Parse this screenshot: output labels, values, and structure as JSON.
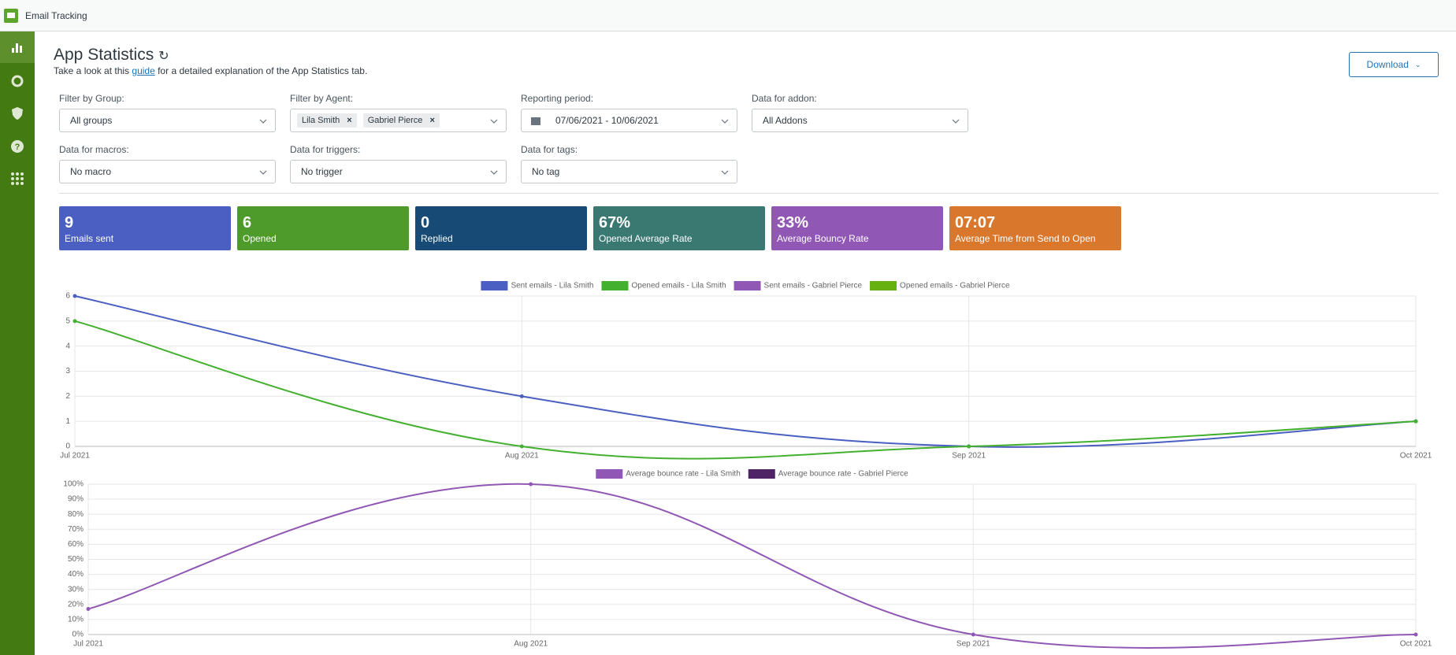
{
  "header": {
    "app_name": "Email Tracking"
  },
  "page": {
    "title": "App Statistics",
    "intro_before": "Take a look at this ",
    "intro_link": "guide",
    "intro_after": " for a detailed explanation of the App Statistics tab.",
    "download": "Download"
  },
  "filters": [
    {
      "label": "Filter by Group:",
      "value": "All groups"
    },
    {
      "label": "Filter by Agent:",
      "chips": [
        "Lila Smith",
        "Gabriel Pierce"
      ]
    },
    {
      "label": "Reporting period:",
      "value": "07/06/2021 - 10/06/2021"
    },
    {
      "label": "Data for addon:",
      "value": "All Addons"
    },
    {
      "label": "Data for macros:",
      "value": "No macro"
    },
    {
      "label": "Data for triggers:",
      "value": "No trigger"
    },
    {
      "label": "Data for tags:",
      "value": "No tag"
    }
  ],
  "stats": [
    {
      "value": 9,
      "label": "Emails sent",
      "color": "#4a5fc1"
    },
    {
      "value": 6,
      "label": "Opened",
      "color": "#4e9a2a"
    },
    {
      "value": 0,
      "label": "Replied",
      "color": "#174a75"
    },
    {
      "value": "67%",
      "label": "Opened Average Rate",
      "color": "#3a7872"
    },
    {
      "value": "33%",
      "label": "Average Bouncy Rate",
      "color": "#9058b4"
    },
    {
      "value": "07:07",
      "label": "Average Time from Send to Open",
      "color": "#d9782d"
    }
  ],
  "chart_data": [
    {
      "type": "line",
      "categories": [
        "Jul 2021",
        "Aug 2021",
        "Sep 2021",
        "Oct 2021"
      ],
      "series": [
        {
          "name": "Sent emails - Lila Smith",
          "color": "#4a5fc1",
          "values": [
            6,
            2,
            0,
            1
          ]
        },
        {
          "name": "Opened emails - Lila Smith",
          "color": "#44b030",
          "values": [
            5,
            0,
            0,
            1
          ]
        },
        {
          "name": "Sent emails - Gabriel Pierce",
          "color": "#9058b4",
          "values": [
            null,
            null,
            null,
            null
          ]
        },
        {
          "name": "Opened emails - Gabriel Pierce",
          "color": "#66b010",
          "values": [
            null,
            null,
            null,
            null
          ]
        }
      ],
      "ylim": [
        0,
        6
      ],
      "yticks": [
        0,
        1,
        2,
        3,
        4,
        5,
        6
      ],
      "grid": true,
      "legend": "top"
    },
    {
      "type": "line",
      "categories": [
        "Jul 2021",
        "Aug 2021",
        "Sep 2021",
        "Oct 2021"
      ],
      "series": [
        {
          "name": "Average bounce rate - Lila Smith",
          "color": "#9058b4",
          "values": [
            17,
            100,
            0,
            0
          ]
        },
        {
          "name": "Average bounce rate - Gabriel Pierce",
          "color": "#4f2467",
          "values": [
            null,
            null,
            null,
            null
          ]
        }
      ],
      "ylim": [
        0,
        100
      ],
      "yticks": [
        {
          "value": 0,
          "label": "0%"
        },
        {
          "value": 10,
          "label": "10%"
        },
        {
          "value": 20,
          "label": "20%"
        },
        {
          "value": 30,
          "label": "30%"
        },
        {
          "value": 40,
          "label": "40%"
        },
        {
          "value": 50,
          "label": "50%"
        },
        {
          "value": 60,
          "label": "60%"
        },
        {
          "value": 70,
          "label": "70%"
        },
        {
          "value": 80,
          "label": "80%"
        },
        {
          "value": 90,
          "label": "90%"
        },
        {
          "value": 100,
          "label": "100%"
        }
      ],
      "grid": true,
      "legend": "top"
    }
  ]
}
